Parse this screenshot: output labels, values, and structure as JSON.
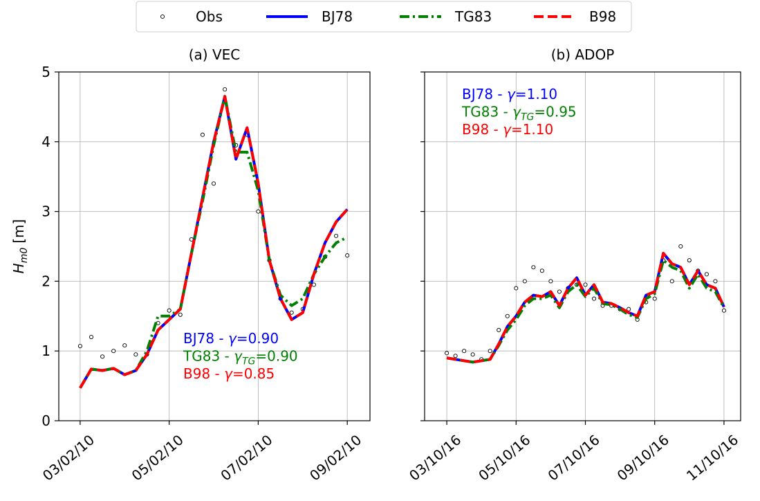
{
  "chart_data": [
    {
      "type": "line",
      "title": "(a) VEC",
      "ylabel": {
        "symbol": "H",
        "subscript": "m0",
        "unit": "[m]"
      },
      "legend": "upper center",
      "grid": true,
      "xlim": [
        -0.48,
        6.51
      ],
      "ylim": [
        0,
        5
      ],
      "xticks": [
        {
          "value": 0,
          "label": "03/02/10"
        },
        {
          "value": 2,
          "label": "05/02/10"
        },
        {
          "value": 4,
          "label": "07/02/10"
        },
        {
          "value": 6,
          "label": "09/02/10"
        }
      ],
      "yticks": [
        0,
        1,
        2,
        3,
        4,
        5
      ],
      "ytick_labels": true,
      "x": [
        0,
        0.25,
        0.5,
        0.75,
        1,
        1.25,
        1.5,
        1.75,
        2,
        2.25,
        2.5,
        2.75,
        3,
        3.25,
        3.5,
        3.75,
        4,
        4.25,
        4.5,
        4.75,
        5,
        5.25,
        5.5,
        5.75,
        6
      ],
      "series": [
        {
          "name": "Obs",
          "color": "#000000",
          "linestyle": "none",
          "values": [
            1.07,
            1.2,
            0.92,
            1.0,
            1.08,
            0.95,
            0.95,
            1.4,
            1.58,
            1.52,
            2.6,
            4.1,
            3.4,
            4.75,
            3.95,
            4.1,
            3.0,
            2.3,
            1.75,
            1.55,
            1.6,
            1.95,
            2.35,
            2.65,
            2.37
          ]
        },
        {
          "name": "BJ78",
          "color": "#0000ff",
          "linestyle": "solid",
          "values": [
            0.47,
            0.74,
            0.72,
            0.75,
            0.66,
            0.72,
            0.95,
            1.3,
            1.45,
            1.6,
            2.4,
            3.2,
            4.0,
            4.65,
            3.75,
            4.2,
            3.4,
            2.3,
            1.75,
            1.45,
            1.55,
            2.1,
            2.55,
            2.85,
            3.03
          ]
        },
        {
          "name": "TG83",
          "color": "#008000",
          "linestyle": "dashdot",
          "values": [
            0.47,
            0.74,
            0.72,
            0.75,
            0.66,
            0.72,
            1.0,
            1.5,
            1.5,
            1.6,
            2.4,
            3.15,
            3.95,
            4.65,
            3.85,
            3.85,
            3.3,
            2.3,
            1.8,
            1.65,
            1.75,
            2.1,
            2.35,
            2.55,
            2.63
          ]
        },
        {
          "name": "B98",
          "color": "#ff0000",
          "linestyle": "dashed",
          "values": [
            0.47,
            0.74,
            0.72,
            0.75,
            0.66,
            0.72,
            0.95,
            1.3,
            1.45,
            1.6,
            2.4,
            3.2,
            4.0,
            4.65,
            3.75,
            4.2,
            3.4,
            2.3,
            1.75,
            1.45,
            1.55,
            2.1,
            2.55,
            2.85,
            3.03
          ]
        }
      ],
      "annotations": [
        {
          "prefix": "BJ78 - ",
          "symbol": "γ",
          "value": "=0.90",
          "color": "#0000ff"
        },
        {
          "prefix": "TG83 - ",
          "symbol": "γ",
          "subscript": "TG",
          "value": "=0.90",
          "color": "#008000"
        },
        {
          "prefix": "B98 - ",
          "symbol": "γ",
          "value": "=0.85",
          "color": "#ff0000"
        }
      ]
    },
    {
      "type": "line",
      "title": "(b) ADOP",
      "grid": true,
      "xlim": [
        -0.64,
        8.48
      ],
      "ylim": [
        0,
        5
      ],
      "xticks": [
        {
          "value": 0,
          "label": "03/10/16"
        },
        {
          "value": 2,
          "label": "05/10/16"
        },
        {
          "value": 4,
          "label": "07/10/16"
        },
        {
          "value": 6,
          "label": "09/10/16"
        },
        {
          "value": 8,
          "label": "11/10/16"
        }
      ],
      "yticks": [
        0,
        1,
        2,
        3,
        4,
        5
      ],
      "ytick_labels": false,
      "x": [
        0,
        0.25,
        0.5,
        0.75,
        1,
        1.25,
        1.5,
        1.75,
        2,
        2.25,
        2.5,
        2.75,
        3,
        3.25,
        3.5,
        3.75,
        4,
        4.25,
        4.5,
        4.75,
        5,
        5.25,
        5.5,
        5.75,
        6,
        6.25,
        6.5,
        6.75,
        7,
        7.25,
        7.5,
        7.75,
        8
      ],
      "series": [
        {
          "name": "Obs",
          "color": "#000000",
          "linestyle": "none",
          "values": [
            0.97,
            0.93,
            1.0,
            0.95,
            0.88,
            1.0,
            1.3,
            1.5,
            1.9,
            2.0,
            2.2,
            2.15,
            2.0,
            1.85,
            1.9,
            1.95,
            1.95,
            1.75,
            1.65,
            1.65,
            1.6,
            1.6,
            1.45,
            1.7,
            1.75,
            2.3,
            2.0,
            2.5,
            2.3,
            2.15,
            2.1,
            2.0,
            1.58
          ]
        },
        {
          "name": "BJ78",
          "color": "#0000ff",
          "linestyle": "solid",
          "values": [
            0.9,
            0.88,
            0.86,
            0.84,
            0.86,
            0.88,
            1.1,
            1.35,
            1.5,
            1.7,
            1.8,
            1.78,
            1.85,
            1.65,
            1.9,
            2.05,
            1.8,
            1.95,
            1.7,
            1.68,
            1.62,
            1.55,
            1.5,
            1.8,
            1.85,
            2.4,
            2.25,
            2.2,
            1.95,
            2.15,
            1.95,
            1.9,
            1.63
          ]
        },
        {
          "name": "TG83",
          "color": "#008000",
          "linestyle": "dashdot",
          "values": [
            0.9,
            0.88,
            0.86,
            0.84,
            0.86,
            0.88,
            1.08,
            1.3,
            1.45,
            1.65,
            1.75,
            1.75,
            1.8,
            1.62,
            1.85,
            1.95,
            1.78,
            1.9,
            1.68,
            1.66,
            1.6,
            1.52,
            1.48,
            1.75,
            1.82,
            2.3,
            2.2,
            2.15,
            1.9,
            2.1,
            1.9,
            1.85,
            1.62
          ]
        },
        {
          "name": "B98",
          "color": "#ff0000",
          "linestyle": "dashed",
          "values": [
            0.9,
            0.88,
            0.86,
            0.84,
            0.86,
            0.88,
            1.1,
            1.35,
            1.5,
            1.7,
            1.8,
            1.78,
            1.85,
            1.65,
            1.9,
            2.05,
            1.8,
            1.95,
            1.7,
            1.68,
            1.62,
            1.55,
            1.5,
            1.8,
            1.85,
            2.4,
            2.25,
            2.2,
            1.95,
            2.15,
            1.95,
            1.9,
            1.63
          ]
        }
      ],
      "annotations": [
        {
          "prefix": "BJ78 - ",
          "symbol": "γ",
          "value": "=1.10",
          "color": "#0000ff"
        },
        {
          "prefix": "TG83 - ",
          "symbol": "γ",
          "subscript": "TG",
          "value": "=0.95",
          "color": "#008000"
        },
        {
          "prefix": "B98 - ",
          "symbol": "γ",
          "value": "=1.10",
          "color": "#ff0000"
        }
      ]
    }
  ]
}
